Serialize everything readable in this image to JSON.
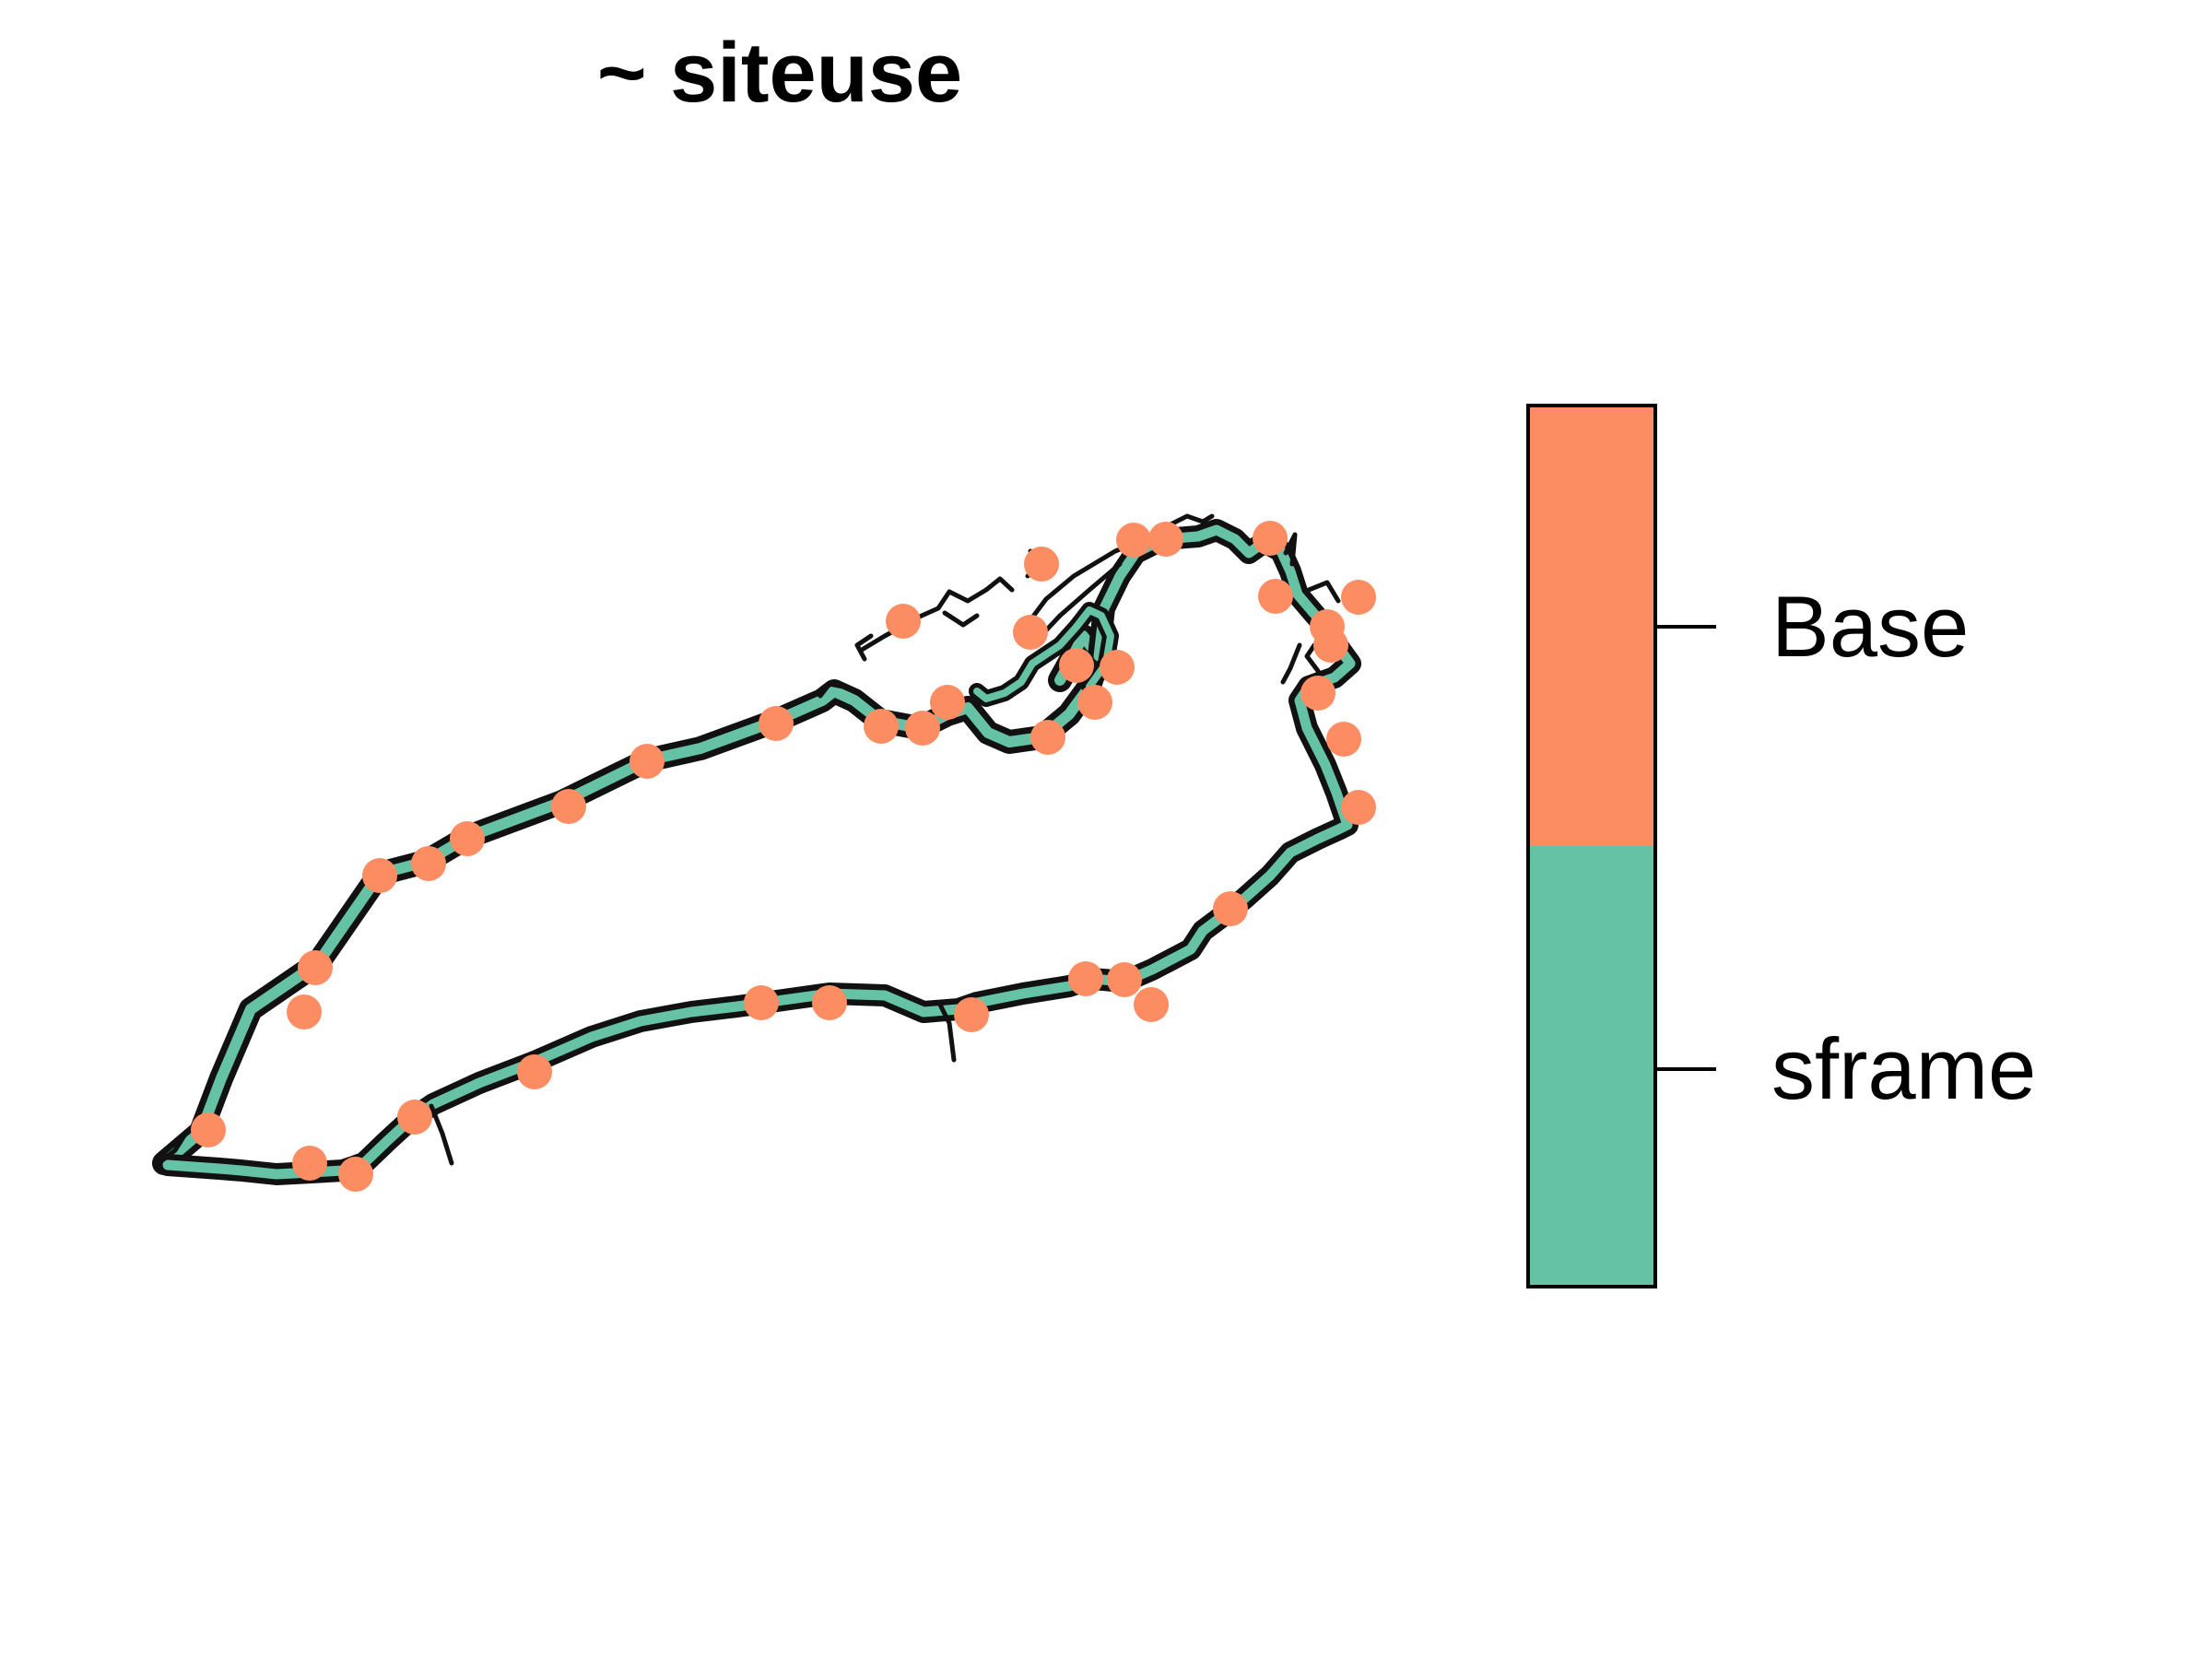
{
  "title": "~ siteuse",
  "legend": {
    "position": "right",
    "style": "color-bar",
    "entries": [
      {
        "label": "Base",
        "color": "#FC8D62"
      },
      {
        "label": "sframe",
        "color": "#66C2A5"
      }
    ]
  },
  "colors": {
    "frame_fill": "#66C2A5",
    "frame_outline": "#111111",
    "sample_points": "#FC8D62",
    "background": "#FFFFFF"
  },
  "map_layers": [
    {
      "name": "sframe",
      "kind": "polygon-outline-band",
      "color_key": "frame_fill"
    },
    {
      "name": "Base",
      "kind": "sample-points",
      "color_key": "sample_points"
    }
  ]
}
